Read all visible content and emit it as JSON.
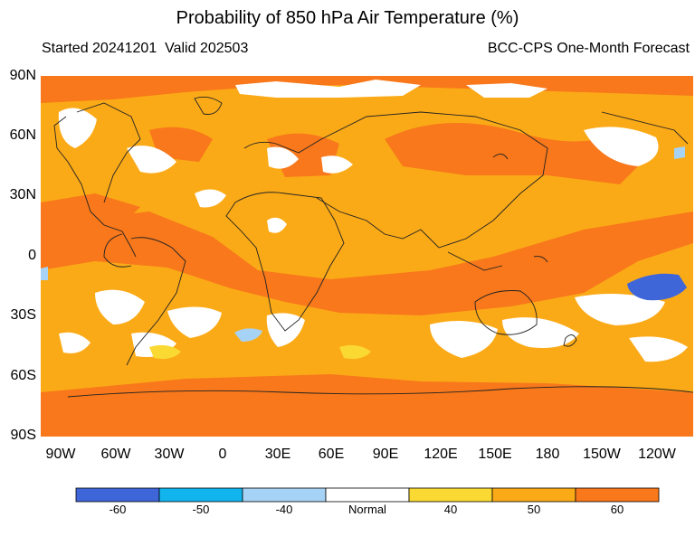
{
  "header": {
    "title": "Probability of 850 hPa Air Temperature (%)",
    "started": "Started 20241201",
    "valid": "Valid 202503",
    "source": "BCC-CPS One-Month Forecast"
  },
  "axes": {
    "lat_labels": [
      "90N",
      "60N",
      "30N",
      "0",
      "30S",
      "60S",
      "90S"
    ],
    "lon_labels": [
      "90W",
      "60W",
      "30W",
      "0",
      "30E",
      "60E",
      "90E",
      "120E",
      "150E",
      "180",
      "150W",
      "120W"
    ],
    "lat_range": [
      -90,
      90
    ],
    "lon_range": [
      -105,
      255
    ]
  },
  "legend": {
    "items": [
      {
        "label": "-60",
        "color": "#3f66d9"
      },
      {
        "label": "-50",
        "color": "#12b4ee"
      },
      {
        "label": "-40",
        "color": "#a6d3f5"
      },
      {
        "label": "Normal",
        "color": "#ffffff"
      },
      {
        "label": "40",
        "color": "#fad933"
      },
      {
        "label": "50",
        "color": "#fbaa17"
      },
      {
        "label": "60",
        "color": "#f8781b"
      }
    ]
  },
  "map": {
    "background_color": "#fbaa17",
    "warm_strong_color": "#f8781b",
    "warm_light_color": "#fad933",
    "normal_color": "#ffffff",
    "cold_color": "#3f66d9",
    "cold_light_color": "#a6d3f5",
    "coast_color": "#222222"
  }
}
